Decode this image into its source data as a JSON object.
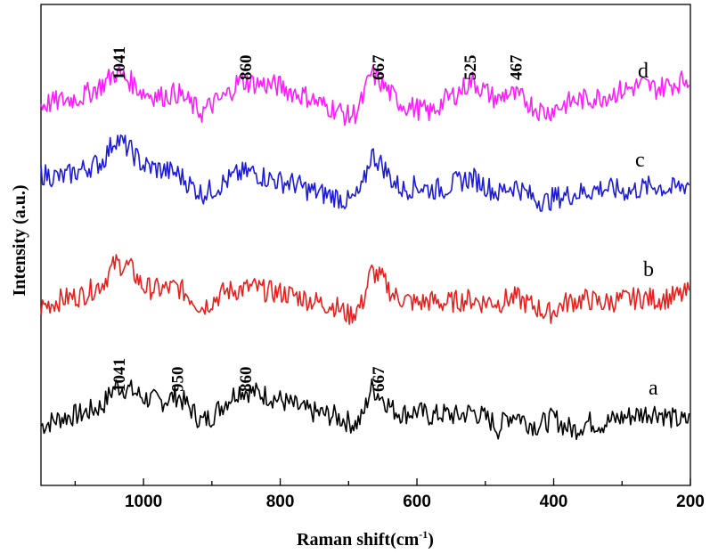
{
  "chart_data": {
    "type": "line",
    "xlabel": "Raman shift",
    "xlabel_unit": "(cm",
    "xlabel_unit_sup": "-1",
    "xlabel_unit_close": ")",
    "ylabel": "Intensity (a.u.)",
    "xlim": [
      1150,
      200
    ],
    "x_reversed": true,
    "x_ticks": [
      1000,
      800,
      600,
      400,
      200
    ],
    "x_tick_labels": [
      "1000",
      "800",
      "600",
      "400",
      "200"
    ],
    "x_minor_ticks": [
      1100,
      900,
      700,
      500,
      300
    ],
    "y_ticks_visible": false,
    "grid": false,
    "legend": "none",
    "series": [
      {
        "name": "a",
        "color": "#000000",
        "x": [
          1150,
          1120,
          1090,
          1060,
          1041,
          1020,
          1000,
          975,
          950,
          930,
          915,
          900,
          880,
          860,
          840,
          820,
          800,
          780,
          760,
          740,
          720,
          700,
          690,
          680,
          667,
          650,
          635,
          620,
          600,
          580,
          560,
          540,
          520,
          505,
          490,
          480,
          470,
          455,
          440,
          425,
          410,
          400,
          385,
          370,
          350,
          330,
          310,
          290,
          270,
          250,
          230,
          210,
          200
        ],
        "y": [
          0.0,
          0.1,
          0.15,
          0.25,
          0.5,
          0.45,
          0.35,
          0.3,
          0.38,
          0.2,
          0.05,
          0.12,
          0.3,
          0.45,
          0.42,
          0.38,
          0.32,
          0.25,
          0.18,
          0.15,
          0.12,
          0.05,
          0.02,
          0.1,
          0.48,
          0.35,
          0.2,
          0.15,
          0.18,
          0.12,
          0.15,
          0.12,
          0.18,
          0.12,
          0.05,
          -0.05,
          0.1,
          0.15,
          0.05,
          0.0,
          0.05,
          0.1,
          0.0,
          -0.05,
          0.05,
          0.02,
          0.08,
          0.12,
          0.15,
          0.18,
          0.1,
          0.05,
          0.08
        ]
      },
      {
        "name": "b",
        "color": "#e8201c",
        "x": [
          1150,
          1120,
          1090,
          1060,
          1041,
          1020,
          1000,
          975,
          950,
          930,
          915,
          900,
          880,
          860,
          840,
          820,
          800,
          780,
          760,
          740,
          720,
          700,
          690,
          680,
          667,
          650,
          635,
          620,
          600,
          580,
          560,
          540,
          520,
          505,
          490,
          480,
          470,
          455,
          440,
          425,
          410,
          400,
          385,
          370,
          350,
          330,
          310,
          290,
          270,
          250,
          230,
          210,
          200
        ],
        "y": [
          0.0,
          0.1,
          0.15,
          0.3,
          0.55,
          0.5,
          0.25,
          0.22,
          0.25,
          0.12,
          0.0,
          0.08,
          0.2,
          0.22,
          0.25,
          0.2,
          0.18,
          0.15,
          0.1,
          0.05,
          0.02,
          -0.1,
          -0.05,
          0.05,
          0.45,
          0.35,
          0.15,
          0.1,
          0.05,
          0.08,
          0.05,
          0.08,
          0.1,
          0.06,
          0.08,
          0.05,
          0.1,
          0.12,
          0.05,
          0.0,
          -0.08,
          -0.05,
          0.05,
          0.08,
          0.1,
          0.05,
          0.08,
          0.1,
          0.12,
          0.1,
          0.12,
          0.15,
          0.2
        ]
      },
      {
        "name": "c",
        "color": "#1c1cd8",
        "x": [
          1150,
          1120,
          1090,
          1060,
          1041,
          1020,
          1000,
          975,
          950,
          930,
          915,
          900,
          880,
          860,
          840,
          820,
          800,
          780,
          760,
          740,
          720,
          700,
          690,
          680,
          667,
          650,
          635,
          620,
          600,
          580,
          560,
          540,
          520,
          505,
          490,
          480,
          470,
          455,
          440,
          425,
          410,
          400,
          385,
          370,
          350,
          330,
          310,
          290,
          270,
          250,
          230,
          210,
          200
        ],
        "y": [
          0.3,
          0.25,
          0.35,
          0.45,
          0.75,
          0.6,
          0.4,
          0.35,
          0.3,
          0.15,
          0.05,
          0.1,
          0.2,
          0.3,
          0.32,
          0.25,
          0.2,
          0.18,
          0.1,
          0.05,
          0.02,
          -0.05,
          0.0,
          0.1,
          0.55,
          0.4,
          0.2,
          0.1,
          0.15,
          0.1,
          0.12,
          0.2,
          0.25,
          0.18,
          0.1,
          0.05,
          0.12,
          0.15,
          0.05,
          -0.02,
          -0.05,
          0.0,
          0.02,
          0.05,
          0.08,
          0.12,
          0.1,
          0.08,
          0.12,
          0.15,
          0.1,
          0.15,
          0.2
        ]
      },
      {
        "name": "d",
        "color": "#ff1aff",
        "x": [
          1150,
          1120,
          1090,
          1060,
          1041,
          1020,
          1000,
          975,
          950,
          930,
          915,
          900,
          880,
          860,
          840,
          820,
          800,
          780,
          760,
          740,
          720,
          700,
          690,
          680,
          667,
          650,
          635,
          620,
          600,
          580,
          560,
          540,
          520,
          505,
          490,
          480,
          470,
          455,
          440,
          425,
          410,
          400,
          385,
          370,
          350,
          330,
          310,
          290,
          270,
          250,
          230,
          210,
          200
        ],
        "y": [
          0.05,
          0.1,
          0.15,
          0.3,
          0.45,
          0.35,
          0.2,
          0.15,
          0.2,
          0.05,
          -0.05,
          0.05,
          0.15,
          0.35,
          0.32,
          0.3,
          0.28,
          0.2,
          0.15,
          0.05,
          0.0,
          -0.1,
          -0.05,
          0.1,
          0.45,
          0.3,
          0.15,
          0.05,
          0.0,
          -0.05,
          0.1,
          0.2,
          0.35,
          0.25,
          0.15,
          0.1,
          0.2,
          0.15,
          0.1,
          0.0,
          -0.05,
          0.0,
          0.05,
          0.1,
          0.12,
          0.15,
          0.2,
          0.25,
          0.3,
          0.25,
          0.3,
          0.35,
          0.4
        ]
      }
    ],
    "annotations": [
      {
        "text": "1041",
        "x": 1035,
        "series": "a"
      },
      {
        "text": "950",
        "x": 950,
        "series": "a"
      },
      {
        "text": "860",
        "x": 850,
        "series": "a"
      },
      {
        "text": "667",
        "x": 656,
        "series": "a"
      },
      {
        "text": "1041",
        "x": 1035,
        "series": "d"
      },
      {
        "text": "860",
        "x": 850,
        "series": "d"
      },
      {
        "text": "667",
        "x": 656,
        "series": "d"
      },
      {
        "text": "525",
        "x": 522,
        "series": "d"
      },
      {
        "text": "467",
        "x": 455,
        "series": "d"
      }
    ]
  }
}
